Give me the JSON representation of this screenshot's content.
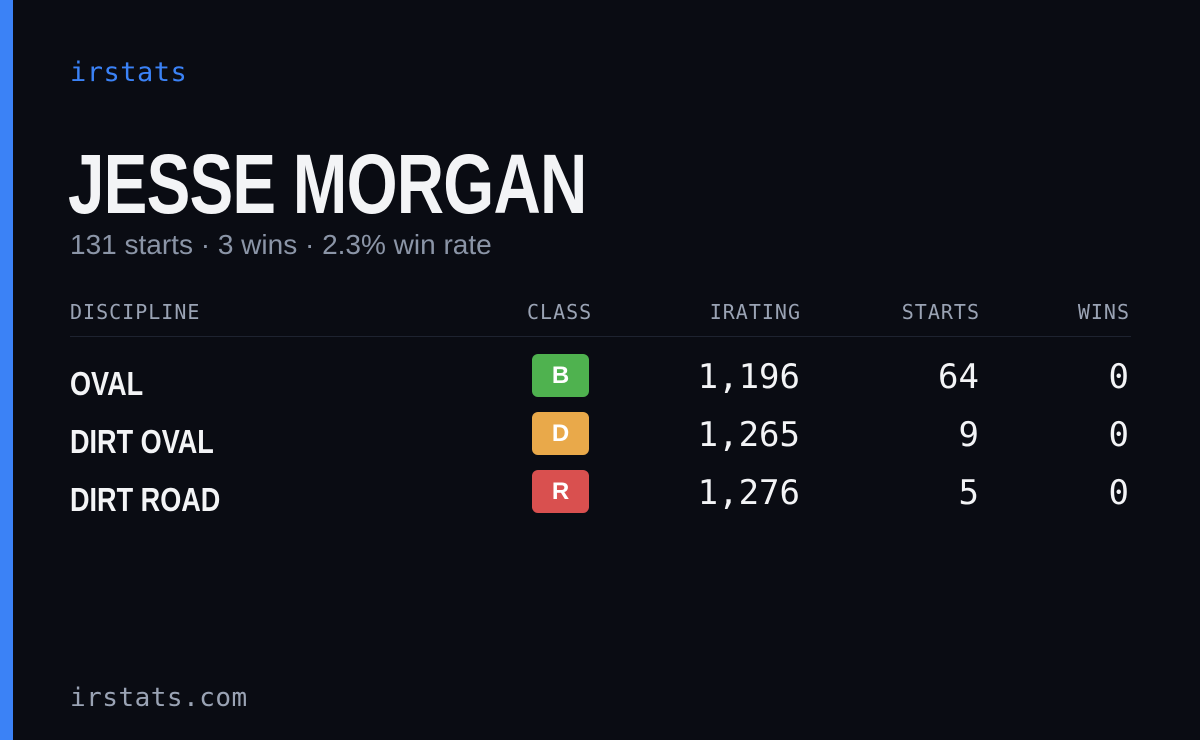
{
  "brand": "irstats",
  "driver": {
    "name": "JESSE MORGAN",
    "summary": "131 starts · 3 wins · 2.3% win rate"
  },
  "table": {
    "headers": {
      "discipline": "DISCIPLINE",
      "class": "CLASS",
      "irating": "IRATING",
      "starts": "STARTS",
      "wins": "WINS"
    },
    "rows": [
      {
        "discipline": "OVAL",
        "class": "B",
        "class_color": "#4fb24f",
        "irating": "1,196",
        "starts": "64",
        "wins": "0"
      },
      {
        "discipline": "DIRT OVAL",
        "class": "D",
        "class_color": "#e9a94a",
        "irating": "1,265",
        "starts": "9",
        "wins": "0"
      },
      {
        "discipline": "DIRT ROAD",
        "class": "R",
        "class_color": "#d9504f",
        "irating": "1,276",
        "starts": "5",
        "wins": "0"
      }
    ]
  },
  "footer": "irstats.com",
  "colors": {
    "accent": "#3b82f6",
    "background": "#0a0c13"
  }
}
